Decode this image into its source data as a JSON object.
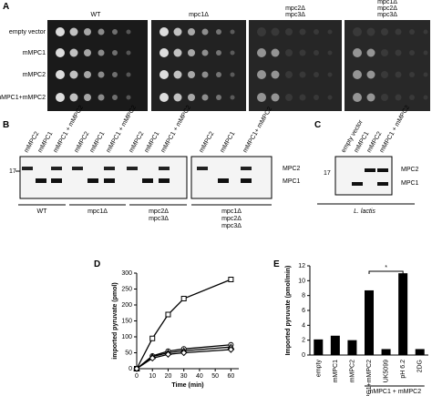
{
  "panel_a": {
    "label": "A",
    "columns": [
      [
        "WT"
      ],
      [
        "mpc1Δ"
      ],
      [
        "mpc2Δ",
        "mpc3Δ"
      ],
      [
        "mpc1Δ",
        "mpc2Δ",
        "mpc3Δ"
      ]
    ],
    "rows": [
      "empty vector",
      "mMPC1",
      "mMPC2",
      "mMPC1+mMPC2"
    ]
  },
  "panel_b": {
    "label": "B",
    "marker": "17",
    "lanes": [
      "mMPC2",
      "mMPC1",
      "mMPC1 + mMPC2",
      "mMPC2",
      "mMPC1",
      "mMPC1 + mMPC2",
      "mMPC2",
      "mMPC1",
      "mMPC1 + mMPC2",
      "mMPC2",
      "mMPC1",
      "mMPC1+ mMPC2"
    ],
    "bands": [
      "MPC2",
      "MPC1"
    ],
    "groups": [
      [
        "WT"
      ],
      [
        "mpc1Δ"
      ],
      [
        "mpc2Δ",
        "mpc3Δ"
      ],
      [
        "mpc1Δ",
        "mpc2Δ",
        "mpc3Δ"
      ]
    ]
  },
  "panel_c": {
    "label": "C",
    "marker": "17",
    "lanes": [
      "empty vector",
      "mMPC1",
      "mMPC2",
      "mMPC1 + mMPC2"
    ],
    "bands": [
      "MPC2",
      "MPC1"
    ],
    "group": "L. lactis"
  },
  "chart_data": [
    {
      "type": "line",
      "label": "D",
      "x_label": "Time (min)",
      "y_label": "imported pyruvate (pmol)",
      "xlim": [
        0,
        65
      ],
      "xticks": [
        0,
        10,
        20,
        30,
        40,
        50,
        60
      ],
      "ylim": [
        0,
        300
      ],
      "yticks": [
        0,
        50,
        100,
        150,
        200,
        250,
        300
      ],
      "x": [
        0,
        10,
        20,
        30,
        60
      ],
      "series": [
        {
          "marker": "square",
          "color": "#000000",
          "values": [
            0,
            95,
            170,
            220,
            280
          ]
        },
        {
          "marker": "circle",
          "color": "#000000",
          "values": [
            0,
            40,
            55,
            62,
            75
          ]
        },
        {
          "marker": "triangle",
          "color": "#000000",
          "values": [
            0,
            38,
            50,
            56,
            68
          ]
        },
        {
          "marker": "diamond",
          "color": "#000000",
          "values": [
            0,
            33,
            45,
            50,
            60
          ]
        }
      ]
    },
    {
      "type": "bar",
      "label": "E",
      "y_label": "Imported pyruvate (pmol/min)",
      "ylim": [
        0,
        12
      ],
      "yticks": [
        0,
        2,
        4,
        6,
        8,
        10,
        12
      ],
      "color": "#000000",
      "categories": [
        "empty",
        "mMPC1",
        "mMPC2",
        "mMPC1+mMPC2",
        "UK5099",
        "pH 6.2",
        "2DG"
      ],
      "values": [
        2.1,
        2.6,
        2.0,
        8.7,
        0.8,
        11.0,
        0.8
      ],
      "annotation": "*",
      "group_label": "mMPC1 + mMPC2"
    }
  ]
}
